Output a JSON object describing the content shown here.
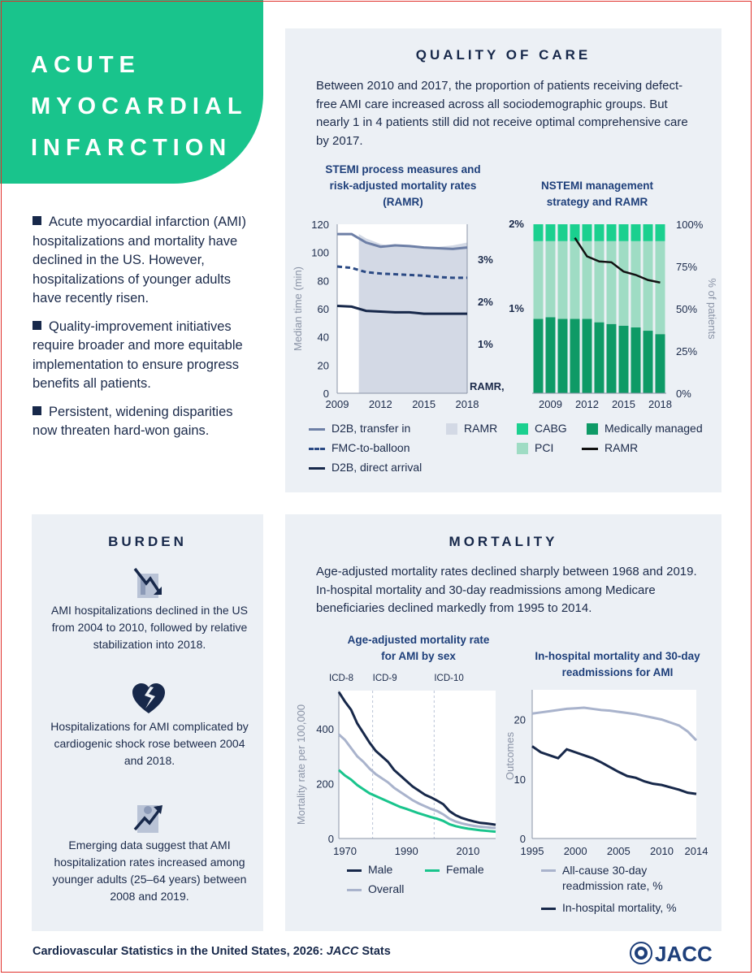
{
  "title_lines": [
    "ACUTE",
    "MYOCARDIAL",
    "INFARCTION"
  ],
  "bullets": [
    "Acute myocardial infarction (AMI) hospitalizations and mortality have declined in the US. However, hospitalizations of younger adults have recently risen.",
    "Quality-improvement initiatives require broader and more equitable implementation to ensure progress benefits all patients.",
    "Persistent, widening disparities now threaten hard-won gains."
  ],
  "quality": {
    "title": "QUALITY OF CARE",
    "text": "Between 2010 and 2017, the proportion of patients receiving defect-free AMI care increased across all sociodemographic groups. But nearly 1 in 4 patients still did not receive optimal comprehensive care by 2017.",
    "stemi_title": "STEMI process measures and risk-adjusted mortality rates (RAMR)",
    "nstemi_title": "NSTEMI management strategy and RAMR",
    "stemi_legend": {
      "d2b_transfer": "D2B, transfer in",
      "ramr": "RAMR",
      "fmc": "FMC-to-balloon",
      "d2b_direct": "D2B, direct arrival"
    },
    "nstemi_legend": {
      "cabg": "CABG",
      "medical": "Medically managed",
      "pci": "PCI",
      "ramr": "RAMR"
    }
  },
  "burden": {
    "title": "BURDEN",
    "items": [
      {
        "icon": "hospital-decline-icon",
        "text": "AMI hospitalizations declined in the US from 2004 to 2010, followed by relative stabilization into 2018."
      },
      {
        "icon": "broken-heart-icon",
        "text": "Hospitalizations for AMI complicated by cardiogenic shock rose between 2004 and 2018."
      },
      {
        "icon": "hospital-increase-icon",
        "text": "Emerging data suggest that AMI hospitalization rates increased among younger adults (25–64 years) between 2008 and 2019."
      }
    ]
  },
  "mortality": {
    "title": "MORTALITY",
    "text": "Age-adjusted mortality rates declined sharply between 1968 and 2019. In-hospital mortality and 30-day readmissions among Medicare beneficiaries declined markedly from 1995 to 2014.",
    "sex_title": "Age-adjusted mortality rate for AMI by sex",
    "inhosp_title": "In-hospital mortality and 30-day readmissions for AMI",
    "sex_legend": {
      "male": "Male",
      "female": "Female",
      "overall": "Overall"
    },
    "inhosp_legend": {
      "readmission": "All-cause 30-day readmission rate, %",
      "mortality": "In-hospital mortality, %"
    }
  },
  "footer": {
    "text_before": "Cardiovascular Statistics in the United States, 2026: ",
    "text_italic": "JACC",
    "text_after": " Stats"
  },
  "logo_text": "JACC",
  "colors": {
    "green": "#19c48c",
    "navy": "#17284a",
    "panel": "#ecf0f5",
    "frame": "#e0312b"
  },
  "chart_data": [
    {
      "type": "line",
      "title": "STEMI process measures and risk-adjusted mortality rates (RAMR)",
      "xlabel": "",
      "ylabel": "Median time (min)",
      "y2label": "RAMR, %",
      "x": [
        2009,
        2010,
        2011,
        2012,
        2013,
        2014,
        2015,
        2016,
        2017,
        2018
      ],
      "xticks": [
        "2009",
        "2012",
        "2015",
        "2018"
      ],
      "ylim": [
        0,
        120
      ],
      "yticks": [
        "0",
        "20",
        "40",
        "60",
        "80",
        "100",
        "120"
      ],
      "y2ticks": [
        "1%",
        "2%",
        "3%"
      ],
      "series": [
        {
          "name": "D2B, transfer in",
          "values": [
            113,
            113,
            107,
            104,
            105,
            104.5,
            103.5,
            103,
            102.5,
            103.5
          ]
        },
        {
          "name": "FMC-to-balloon",
          "values": [
            90,
            89,
            86,
            85,
            84.5,
            84,
            83.5,
            82.5,
            82,
            82
          ]
        },
        {
          "name": "D2B, direct arrival",
          "values": [
            62,
            61.5,
            58.5,
            58,
            57.5,
            57.5,
            56.5,
            56.5,
            56.5,
            56.5
          ]
        },
        {
          "name": "RAMR",
          "type": "area",
          "x": [
            2010.5,
            2011,
            2012,
            2013,
            2014,
            2015,
            2016,
            2017,
            2018
          ],
          "values": [
            113,
            110,
            106,
            104,
            104,
            104,
            104,
            105,
            107
          ]
        }
      ]
    },
    {
      "type": "bar",
      "stacked": true,
      "title": "NSTEMI management strategy and RAMR",
      "ylabel": "% of patients",
      "y2label": "",
      "categories": [
        "2008",
        "2009",
        "2010",
        "2011",
        "2012",
        "2013",
        "2014",
        "2015",
        "2016",
        "2017",
        "2018"
      ],
      "xticks": [
        "2009",
        "2012",
        "2015",
        "2018"
      ],
      "ylim": [
        0,
        100
      ],
      "yticks": [
        "0%",
        "25%",
        "50%",
        "75%",
        "100%"
      ],
      "leftticks": [
        "1%",
        "2%"
      ],
      "series": [
        {
          "name": "Medically managed",
          "values": [
            44,
            45,
            44,
            44,
            44,
            42,
            41,
            40,
            39,
            37,
            35
          ]
        },
        {
          "name": "PCI",
          "values": [
            46,
            45,
            46,
            46,
            46,
            48,
            49,
            50,
            51,
            53,
            55
          ]
        },
        {
          "name": "CABG",
          "values": [
            10,
            10,
            10,
            10,
            10,
            10,
            10,
            10,
            10,
            10,
            10
          ]
        },
        {
          "name": "RAMR",
          "type": "line",
          "x": [
            "2011",
            "2012",
            "2013",
            "2014",
            "2015",
            "2016",
            "2017",
            "2018"
          ],
          "values": [
            92,
            81,
            78,
            77.5,
            72,
            70,
            67,
            65.5
          ]
        }
      ]
    },
    {
      "type": "line",
      "title": "Age-adjusted mortality rate for AMI by sex",
      "ylabel": "Mortality rate per 100,000",
      "x": [
        1968,
        1970,
        1972,
        1974,
        1976,
        1978,
        1980,
        1982,
        1984,
        1986,
        1988,
        1990,
        1992,
        1994,
        1996,
        1998,
        2000,
        2002,
        2004,
        2006,
        2008,
        2010,
        2012,
        2014,
        2016,
        2018,
        2019
      ],
      "xticks": [
        "1970",
        "1990",
        "2010"
      ],
      "ylim": [
        0,
        540
      ],
      "yticks": [
        "0",
        "200",
        "400"
      ],
      "annotations": [
        {
          "label": "ICD-8",
          "x": 1968
        },
        {
          "label": "ICD-9",
          "x": 1979
        },
        {
          "label": "ICD-10",
          "x": 1999
        }
      ],
      "series": [
        {
          "name": "Male",
          "values": [
            535,
            500,
            470,
            420,
            385,
            350,
            320,
            300,
            280,
            250,
            230,
            210,
            190,
            175,
            160,
            150,
            138,
            125,
            100,
            85,
            75,
            68,
            62,
            57,
            55,
            52,
            50
          ]
        },
        {
          "name": "Overall",
          "values": [
            380,
            360,
            330,
            300,
            280,
            255,
            235,
            220,
            205,
            185,
            170,
            155,
            140,
            128,
            118,
            108,
            100,
            88,
            72,
            62,
            55,
            50,
            46,
            43,
            41,
            39,
            38
          ]
        },
        {
          "name": "Female",
          "values": [
            250,
            230,
            215,
            195,
            180,
            165,
            155,
            145,
            135,
            125,
            115,
            108,
            100,
            92,
            85,
            78,
            72,
            64,
            52,
            45,
            40,
            36,
            33,
            30,
            28,
            26,
            25
          ]
        }
      ]
    },
    {
      "type": "line",
      "title": "In-hospital mortality and 30-day readmissions for AMI",
      "ylabel": "Outcomes",
      "x": [
        1995,
        1996,
        1997,
        1998,
        1999,
        2000,
        2001,
        2002,
        2003,
        2004,
        2005,
        2006,
        2007,
        2008,
        2009,
        2010,
        2011,
        2012,
        2013,
        2014
      ],
      "xticks": [
        "1995",
        "2000",
        "2005",
        "2010",
        "2014"
      ],
      "ylim": [
        0,
        25
      ],
      "yticks": [
        "0",
        "10",
        "20"
      ],
      "series": [
        {
          "name": "All-cause 30-day readmission rate, %",
          "values": [
            21,
            21.2,
            21.4,
            21.6,
            21.8,
            21.9,
            22,
            21.8,
            21.6,
            21.5,
            21.3,
            21.1,
            20.9,
            20.6,
            20.3,
            20,
            19.5,
            19,
            18,
            16.5
          ]
        },
        {
          "name": "In-hospital mortality, %",
          "values": [
            15.5,
            14.5,
            14,
            13.5,
            15,
            14.5,
            14,
            13.5,
            12.8,
            12,
            11.2,
            10.5,
            10.2,
            9.6,
            9.2,
            9,
            8.6,
            8.2,
            7.7,
            7.5
          ]
        }
      ]
    }
  ]
}
